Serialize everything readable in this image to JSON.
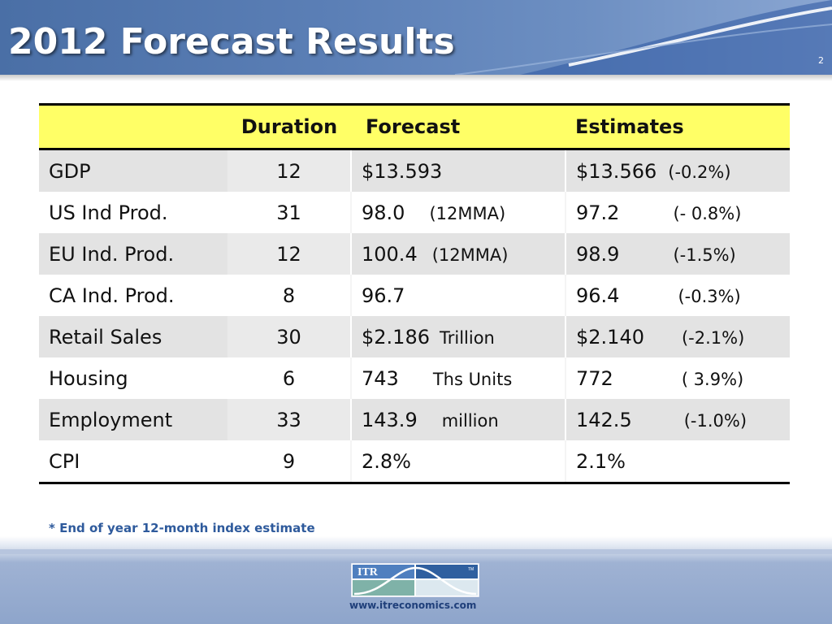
{
  "slide": {
    "title": "2012 Forecast Results",
    "page_number": "2"
  },
  "table": {
    "headers": [
      "",
      "Duration",
      "Forecast",
      "Estimates"
    ],
    "rows": [
      {
        "indicator": "GDP",
        "duration": "12",
        "forecast": "$13.593",
        "forecast_note": "",
        "estimate": "$13.566",
        "estimate_note": "(-0.2%)"
      },
      {
        "indicator": "US Ind Prod.",
        "duration": "31",
        "forecast": "98.0",
        "forecast_note": "(12MMA)",
        "estimate": "97.2",
        "estimate_note": "(- 0.8%)"
      },
      {
        "indicator": "EU Ind. Prod.",
        "duration": "12",
        "forecast": "100.4",
        "forecast_note": "(12MMA)",
        "estimate": "98.9",
        "estimate_note": "(-1.5%)"
      },
      {
        "indicator": "CA Ind. Prod.",
        "duration": "8",
        "forecast": "96.7",
        "forecast_note": "",
        "estimate": "96.4",
        "estimate_note": "(-0.3%)"
      },
      {
        "indicator": "Retail Sales",
        "duration": "30",
        "forecast": "$2.186",
        "forecast_note": "Trillion",
        "estimate": "$2.140",
        "estimate_note": "(-2.1%)"
      },
      {
        "indicator": "Housing",
        "duration": "6",
        "forecast": "743",
        "forecast_note": "Ths Units",
        "estimate": "772",
        "estimate_note": "( 3.9%)"
      },
      {
        "indicator": "Employment",
        "duration": "33",
        "forecast": "143.9",
        "forecast_note": "million",
        "estimate": "142.5",
        "estimate_note": "(-1.0%)"
      },
      {
        "indicator": "CPI",
        "duration": "9",
        "forecast": "2.8%",
        "forecast_note": "",
        "estimate": "2.1%",
        "estimate_note": ""
      }
    ]
  },
  "footnote": "* End of year 12-month index estimate",
  "footer": {
    "logo_text": "ITR",
    "trademark": "TM",
    "website": "www.itreconomics.com"
  },
  "colors": {
    "header_blue": "#5b7fb6",
    "header_row_yellow": "#ffff66",
    "footnote_blue": "#2e5a9c"
  }
}
